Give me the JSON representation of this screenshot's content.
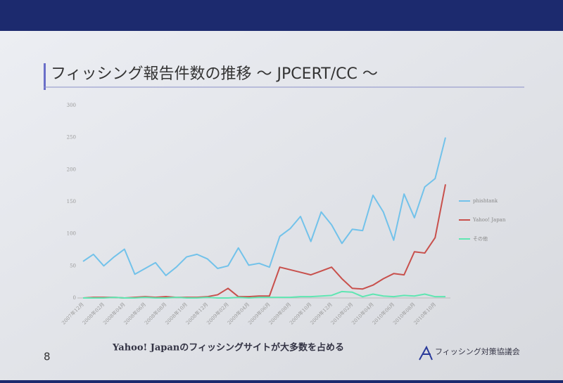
{
  "slide": {
    "title": "フィッシング報告件数の推移 ～ JPCERT/CC ～",
    "page_number": "8",
    "caption": "Yahoo! Japanのフィッシングサイトが大多数を占める",
    "logo": "フィッシング対策協議会"
  },
  "chart_data": {
    "type": "line",
    "categories": [
      "2007年12月",
      null,
      "2008年02月",
      null,
      "2008年04月",
      null,
      "2008年06月",
      null,
      "2008年08月",
      null,
      "2008年10月",
      null,
      "2008年12月",
      null,
      "2009年02月",
      null,
      "2009年04月",
      null,
      "2009年06月",
      null,
      "2009年08月",
      null,
      "2009年10月",
      null,
      "2009年12月",
      null,
      "2010年02月",
      null,
      "2010年04月",
      null,
      "2010年06月",
      null,
      "2010年08月",
      null,
      "2010年10月",
      null
    ],
    "series": [
      {
        "name": "phishtank",
        "color": "#72c2ea",
        "values": [
          57,
          68,
          50,
          64,
          76,
          37,
          46,
          55,
          35,
          48,
          64,
          68,
          61,
          46,
          50,
          78,
          51,
          54,
          48,
          96,
          108,
          127,
          88,
          134,
          114,
          85,
          107,
          105,
          160,
          134,
          90,
          162,
          125,
          173,
          186,
          250
        ]
      },
      {
        "name": "Yahoo! Japan",
        "color": "#c8504c",
        "values": [
          0,
          1,
          1,
          1,
          0,
          1,
          2,
          1,
          2,
          1,
          1,
          1,
          2,
          5,
          15,
          2,
          2,
          3,
          3,
          48,
          44,
          40,
          36,
          42,
          48,
          30,
          15,
          14,
          20,
          30,
          38,
          36,
          72,
          70,
          94,
          177
        ]
      },
      {
        "name": "その他",
        "color": "#5fe6b2",
        "values": [
          0,
          0,
          0,
          1,
          0,
          0,
          1,
          0,
          0,
          1,
          0,
          0,
          1,
          0,
          0,
          1,
          0,
          1,
          1,
          1,
          1,
          2,
          2,
          3,
          4,
          10,
          9,
          2,
          6,
          3,
          2,
          4,
          3,
          6,
          2,
          2
        ]
      }
    ],
    "ylim": [
      0,
      300
    ],
    "yticks": [
      0,
      50,
      100,
      150,
      200,
      250,
      300
    ],
    "grid": false,
    "legend": "right"
  }
}
